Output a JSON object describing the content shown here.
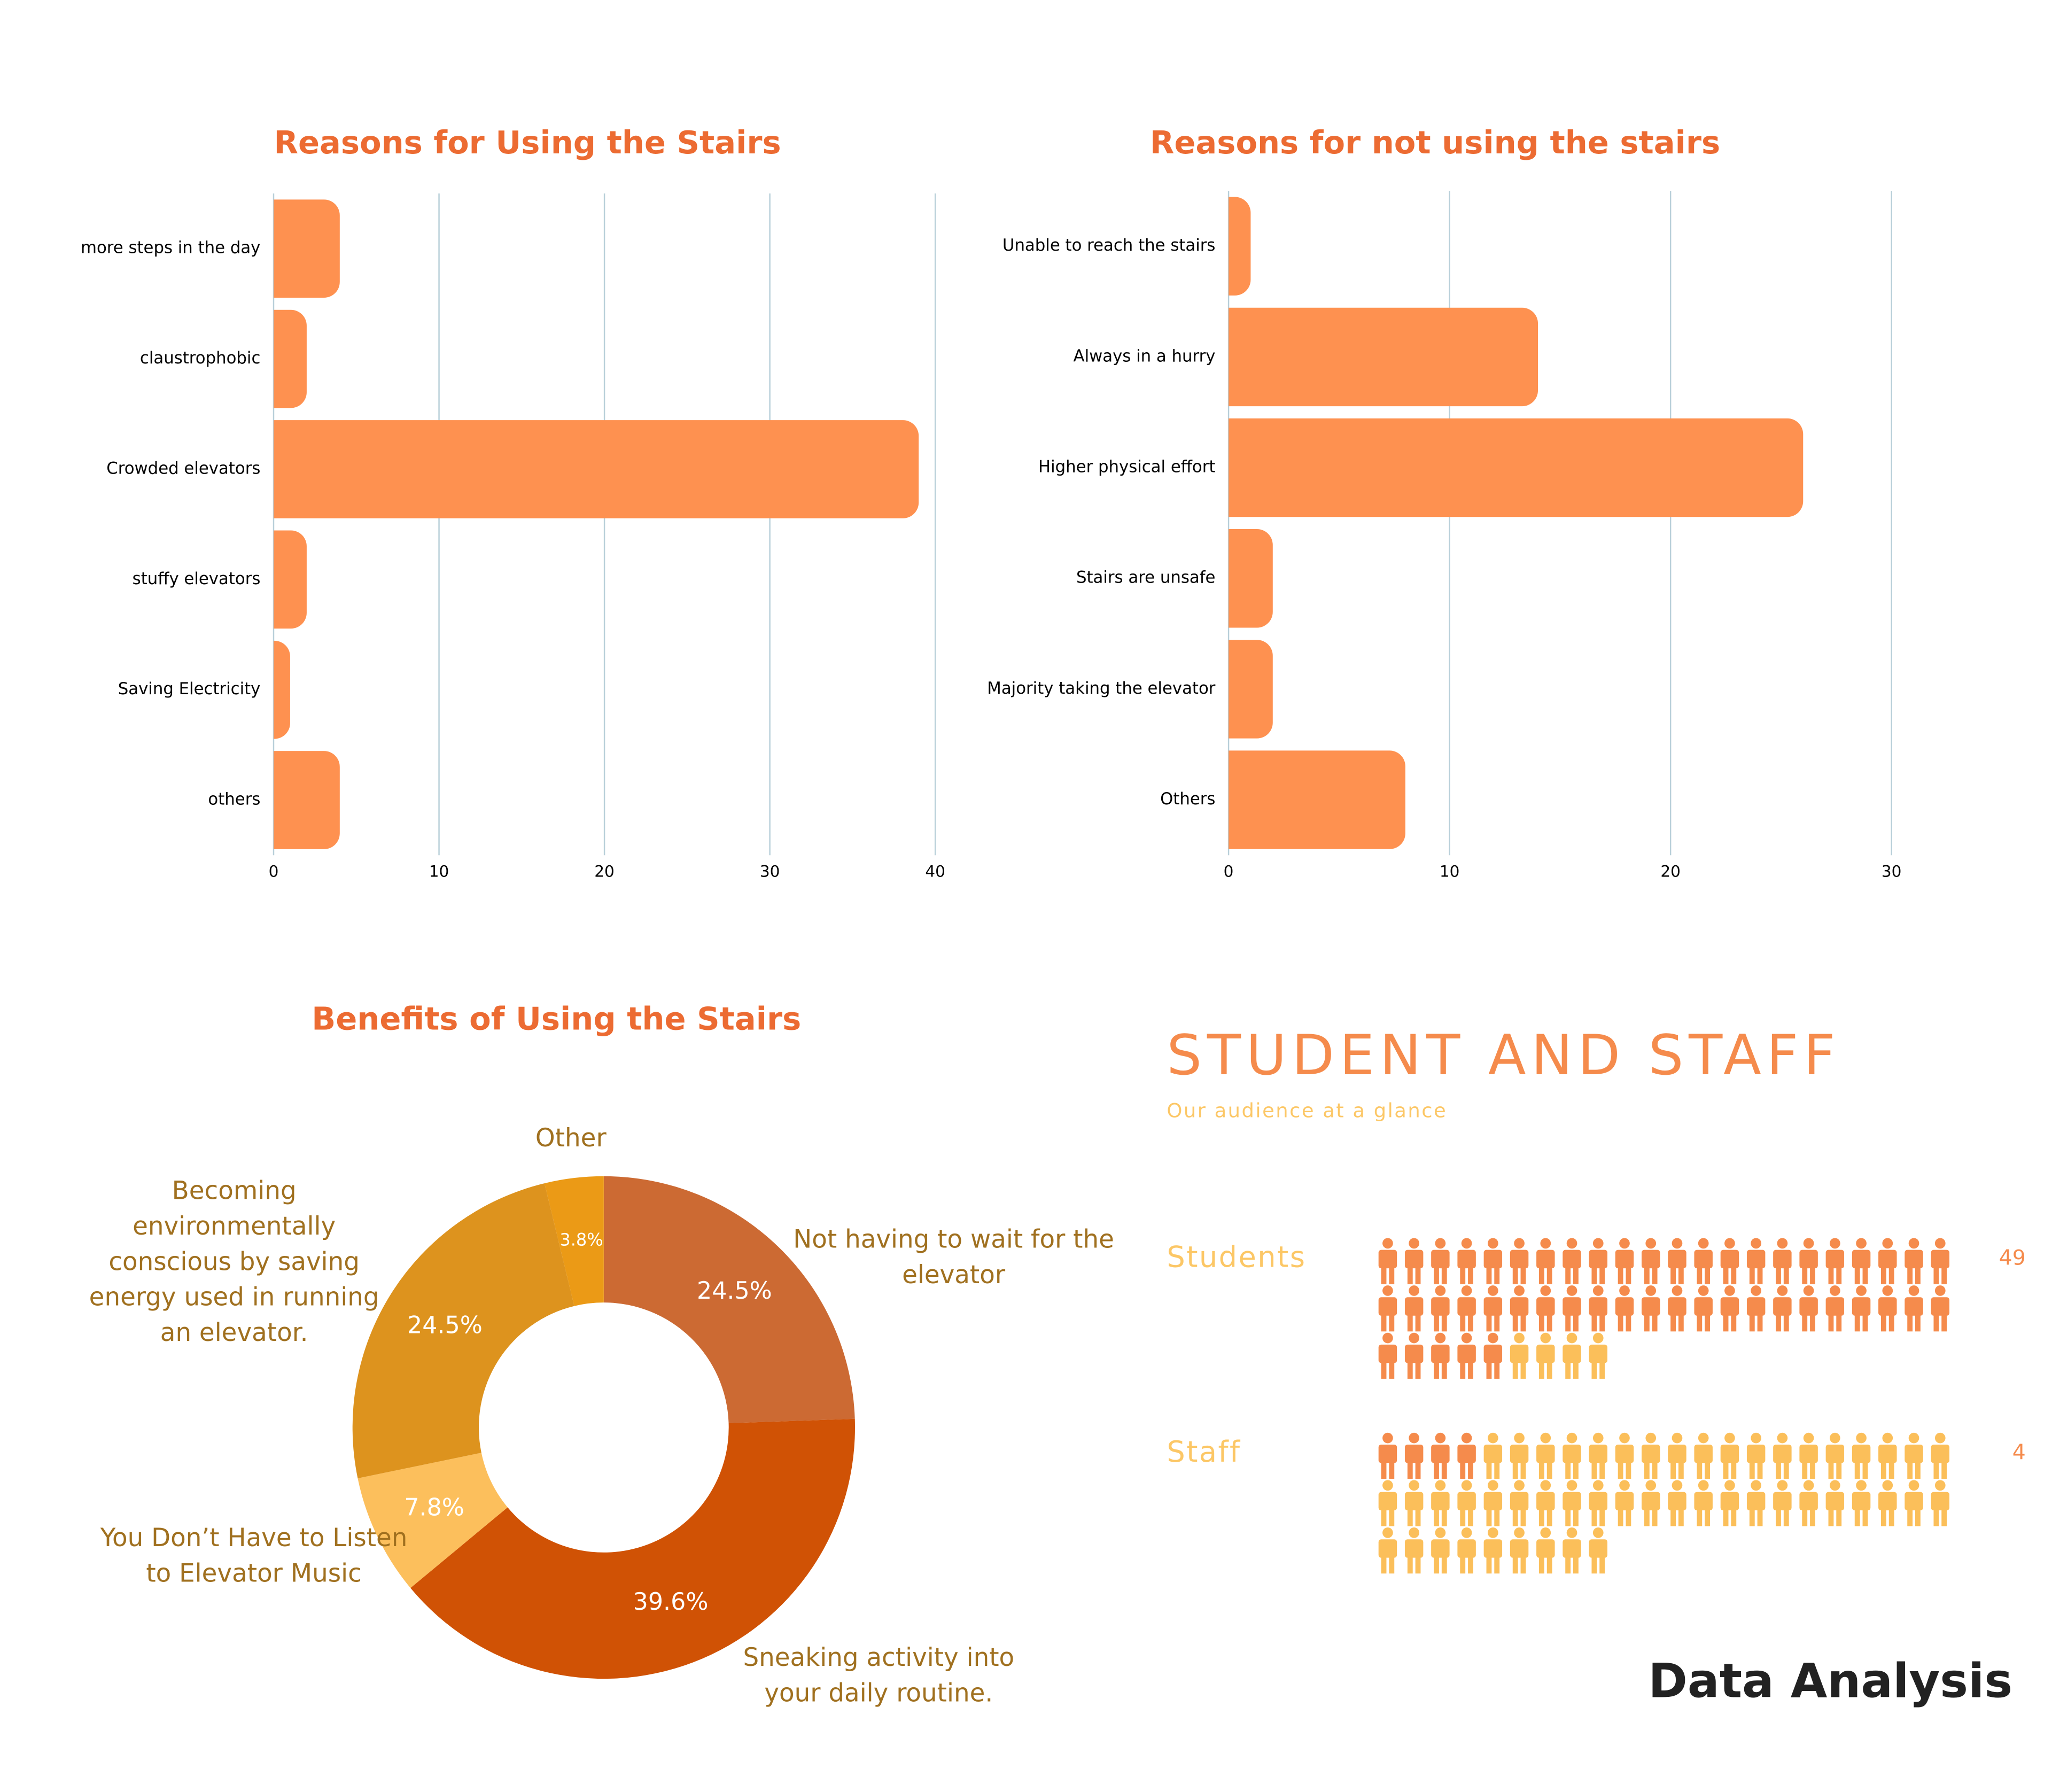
{
  "chart_data": [
    {
      "type": "hbar",
      "title": "Reasons for Using the Stairs",
      "categories": [
        "more steps in the day",
        "claustrophobic",
        "Crowded elevators",
        "stuffy elevators",
        "Saving Electricity",
        "others"
      ],
      "values": [
        4,
        2,
        39,
        2,
        1,
        4
      ],
      "color": "#fe9150",
      "xlim": [
        0,
        40
      ],
      "xticks": [
        0,
        10,
        20,
        30,
        40
      ],
      "grid": true
    },
    {
      "type": "hbar",
      "title": "Reasons for not using the stairs",
      "categories": [
        "Unable to reach the stairs",
        "Always in a hurry",
        "Higher physical effort",
        "Stairs are unsafe",
        "Majority taking the elevator",
        "Others"
      ],
      "values": [
        1,
        14,
        26,
        2,
        2,
        8
      ],
      "color": "#fe9150",
      "xlim": [
        0,
        30
      ],
      "xticks": [
        0,
        10,
        20,
        30
      ],
      "grid": true
    },
    {
      "type": "donut",
      "title": "Benefits of Using the Stairs",
      "categories": [
        "Not having to wait for the elevator",
        "Sneaking activity into your daily routine.",
        "You Don’t Have to Listen to Elevator Music",
        "Becoming environmentally conscious by saving energy used in running an elevator.",
        "Other"
      ],
      "values": [
        24.5,
        39.6,
        7.8,
        24.5,
        3.8
      ],
      "value_labels": [
        "24.5%",
        "39.6%",
        "7.8%",
        "24.5%",
        "3.8%"
      ],
      "colors": [
        "#cc6a33",
        "#d05205",
        "#fcbf5c",
        "#dd931e",
        "#eb9a16"
      ]
    },
    {
      "type": "pictograph",
      "title": "STUDENT AND STAFF",
      "subtitle": "Our audience at a glance",
      "categories": [
        "Students",
        "Staff"
      ],
      "values": [
        49,
        4
      ],
      "colors": [
        "#f58b4c",
        "#fbbf5a"
      ]
    }
  ],
  "footer": "Data Analysis"
}
